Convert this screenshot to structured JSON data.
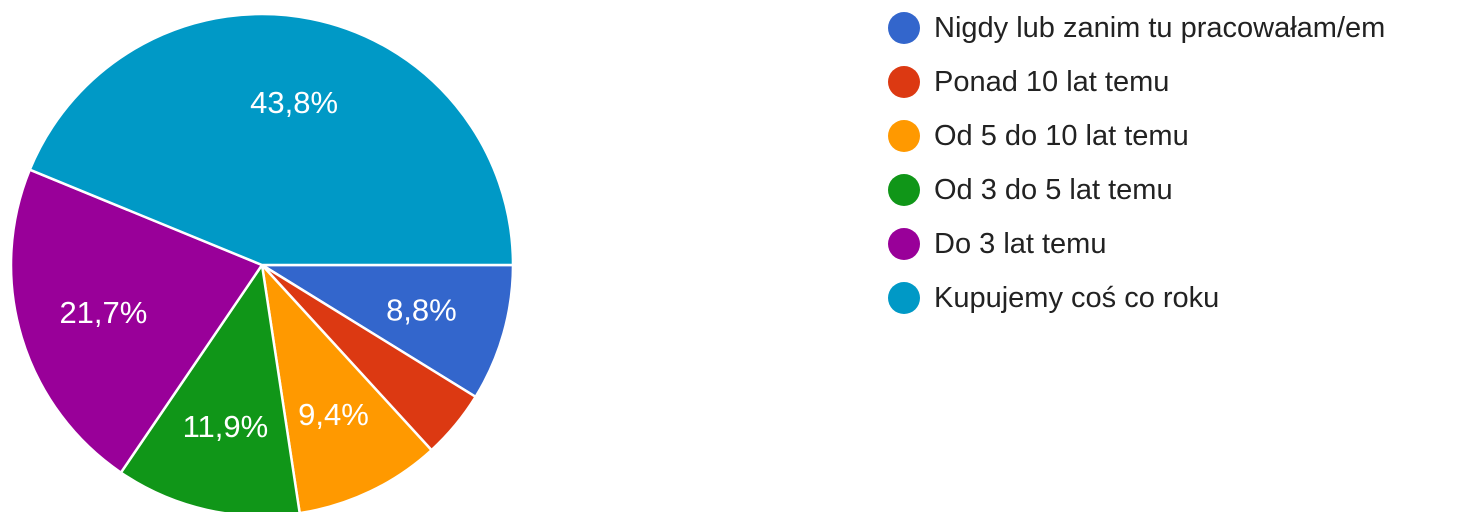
{
  "chart_data": {
    "type": "pie",
    "categories": [
      "Nigdy lub zanim tu pracowałam/em",
      "Ponad 10 lat temu",
      "Od 5 do 10 lat temu",
      "Od 3 do 5 lat temu",
      "Do 3 lat temu",
      "Kupujemy coś co roku"
    ],
    "values": [
      8.8,
      4.4,
      9.4,
      11.9,
      21.7,
      43.8
    ],
    "data_labels": [
      "8,8%",
      "",
      "9,4%",
      "11,9%",
      "21,7%",
      "43,8%"
    ],
    "colors": [
      "#3366cc",
      "#dc3912",
      "#ff9900",
      "#109618",
      "#990099",
      "#0099c6"
    ],
    "legend_position": "right"
  }
}
